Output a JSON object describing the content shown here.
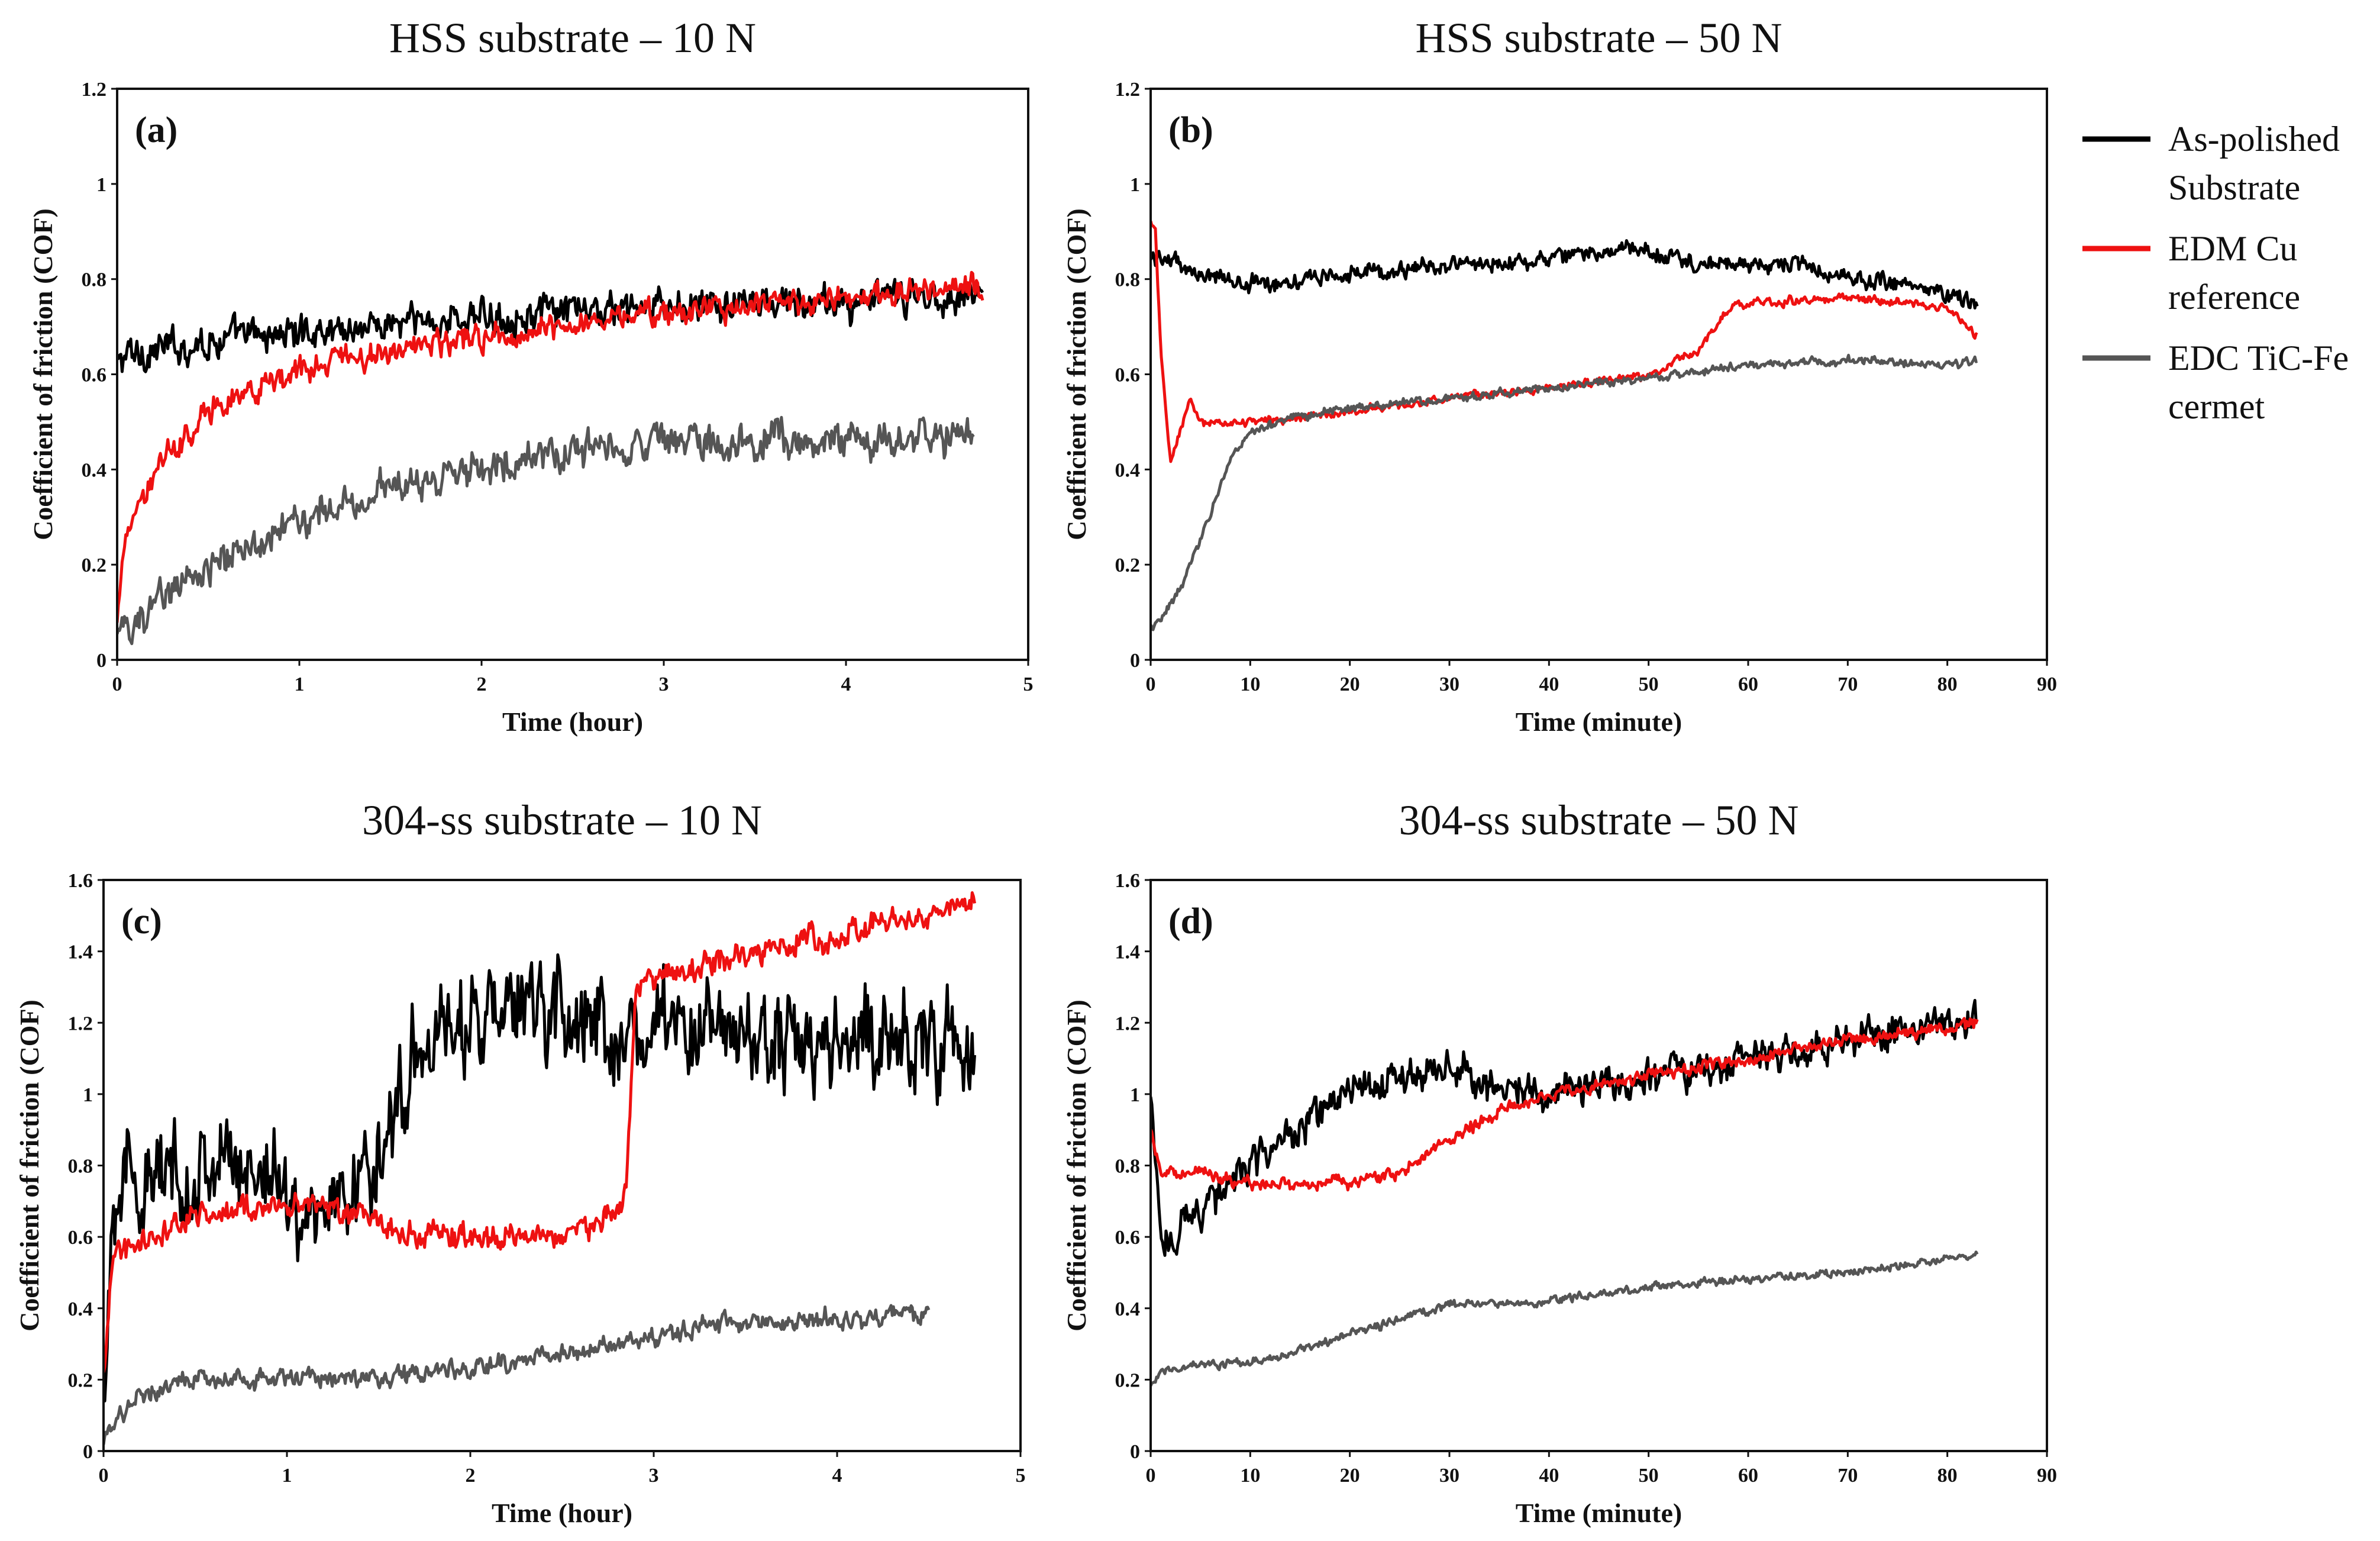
{
  "legend": {
    "entries": [
      {
        "lines": [
          "As-polished",
          "Substrate"
        ],
        "color": "#000000"
      },
      {
        "lines": [
          "EDM Cu",
          "reference"
        ],
        "color": "#ee1111"
      },
      {
        "lines": [
          "EDC TiC-Fe",
          "cermet"
        ],
        "color": "#555555"
      }
    ]
  },
  "chart_data": [
    {
      "type": "line",
      "panel_label": "(a)",
      "title": "HSS substrate – 10 N",
      "xlabel": "Time (hour)",
      "ylabel": "Coefficient of friction (COF)",
      "xlim": [
        0,
        5
      ],
      "ylim": [
        0,
        1.2
      ],
      "xticks": [
        "0",
        "1",
        "2",
        "3",
        "4",
        "5"
      ],
      "yticks": [
        "0",
        "0.2",
        "0.4",
        "0.6",
        "0.8",
        "1",
        "1.2"
      ],
      "series": [
        {
          "name": "As-polished Substrate",
          "color": "#000000",
          "noise": 0.025,
          "x": [
            0,
            0.05,
            0.5,
            1,
            2,
            3,
            4,
            4.75
          ],
          "y": [
            0.62,
            0.64,
            0.67,
            0.69,
            0.72,
            0.74,
            0.75,
            0.77
          ]
        },
        {
          "name": "EDM Cu reference",
          "color": "#ee1111",
          "noise": 0.018,
          "x": [
            0,
            0.05,
            0.25,
            0.5,
            1,
            1.5,
            2,
            3,
            4,
            4.75
          ],
          "y": [
            0.08,
            0.28,
            0.42,
            0.52,
            0.61,
            0.65,
            0.68,
            0.73,
            0.76,
            0.79
          ]
        },
        {
          "name": "EDC TiC-Fe cermet",
          "color": "#555555",
          "noise": 0.025,
          "x": [
            0,
            0.25,
            0.5,
            1,
            1.5,
            2,
            2.5,
            3,
            4,
            4.7
          ],
          "y": [
            0.05,
            0.13,
            0.19,
            0.3,
            0.36,
            0.41,
            0.44,
            0.46,
            0.46,
            0.48
          ]
        }
      ]
    },
    {
      "type": "line",
      "panel_label": "(b)",
      "title": "HSS substrate – 50 N",
      "xlabel": "Time (minute)",
      "ylabel": "Coefficient of friction (COF)",
      "xlim": [
        0,
        90
      ],
      "ylim": [
        0,
        1.2
      ],
      "xticks": [
        "0",
        "10",
        "20",
        "30",
        "40",
        "50",
        "60",
        "70",
        "80",
        "90"
      ],
      "yticks": [
        "0",
        "0.2",
        "0.4",
        "0.6",
        "0.8",
        "1",
        "1.2"
      ],
      "series": [
        {
          "name": "As-polished Substrate",
          "color": "#000000",
          "noise": 0.012,
          "x": [
            0,
            1,
            5,
            10,
            20,
            30,
            40,
            45,
            50,
            55,
            60,
            65,
            70,
            75,
            80,
            83
          ],
          "y": [
            0.84,
            0.85,
            0.81,
            0.79,
            0.81,
            0.83,
            0.84,
            0.86,
            0.86,
            0.83,
            0.83,
            0.83,
            0.8,
            0.79,
            0.77,
            0.75
          ]
        },
        {
          "name": "EDM Cu reference",
          "color": "#ee1111",
          "noise": 0.006,
          "x": [
            0,
            0.5,
            1,
            2,
            3,
            4,
            5,
            10,
            20,
            30,
            40,
            50,
            55,
            58,
            60,
            70,
            80,
            83
          ],
          "y": [
            0.92,
            0.9,
            0.65,
            0.42,
            0.48,
            0.55,
            0.5,
            0.5,
            0.52,
            0.55,
            0.57,
            0.6,
            0.65,
            0.74,
            0.75,
            0.76,
            0.74,
            0.68
          ]
        },
        {
          "name": "EDC TiC-Fe cermet",
          "color": "#555555",
          "noise": 0.006,
          "x": [
            0,
            1,
            3,
            5,
            8,
            10,
            15,
            20,
            30,
            40,
            50,
            60,
            70,
            80,
            83
          ],
          "y": [
            0.07,
            0.08,
            0.15,
            0.25,
            0.42,
            0.48,
            0.51,
            0.53,
            0.55,
            0.57,
            0.59,
            0.62,
            0.63,
            0.62,
            0.63
          ]
        }
      ]
    },
    {
      "type": "line",
      "panel_label": "(c)",
      "title": "304-ss substrate – 10 N",
      "xlabel": "Time (hour)",
      "ylabel": "Coefficient of friction (COF)",
      "xlim": [
        0,
        5
      ],
      "ylim": [
        0,
        1.6
      ],
      "xticks": [
        "0",
        "1",
        "2",
        "3",
        "4",
        "5"
      ],
      "yticks": [
        "0",
        "0.2",
        "0.4",
        "0.6",
        "0.8",
        "1",
        "1.2",
        "1.4",
        "1.6"
      ],
      "series": [
        {
          "name": "As-polished Substrate",
          "color": "#000000",
          "noise": 0.09,
          "x": [
            0,
            0.05,
            0.3,
            0.6,
            0.9,
            1.1,
            1.3,
            1.5,
            1.7,
            2,
            2.5,
            2.8,
            3.2,
            3.5,
            4,
            4.5,
            4.75
          ],
          "y": [
            0.1,
            0.75,
            0.75,
            0.8,
            0.8,
            0.65,
            0.72,
            0.8,
            1.15,
            1.2,
            1.25,
            1.15,
            1.2,
            1.15,
            1.15,
            1.15,
            1.1
          ]
        },
        {
          "name": "EDM Cu reference",
          "color": "#ee1111",
          "noise": 0.025,
          "x": [
            0,
            0.05,
            0.3,
            0.6,
            1,
            1.4,
            1.6,
            2,
            2.5,
            2.8,
            2.85,
            2.9,
            3.5,
            4,
            4.5,
            4.75
          ],
          "y": [
            0.2,
            0.55,
            0.62,
            0.67,
            0.68,
            0.67,
            0.62,
            0.6,
            0.6,
            0.66,
            0.72,
            1.3,
            1.4,
            1.45,
            1.5,
            1.55
          ]
        },
        {
          "name": "EDC TiC-Fe cermet",
          "color": "#555555",
          "noise": 0.018,
          "x": [
            0,
            0.05,
            0.2,
            0.5,
            1,
            1.5,
            2,
            2.5,
            3,
            3.5,
            4,
            4.5
          ],
          "y": [
            0.02,
            0.08,
            0.15,
            0.2,
            0.2,
            0.21,
            0.23,
            0.27,
            0.32,
            0.36,
            0.37,
            0.38
          ]
        }
      ]
    },
    {
      "type": "line",
      "panel_label": "(d)",
      "title": "304-ss substrate – 50 N",
      "xlabel": "Time (minute)",
      "ylabel": "Coefficient of friction (COF)",
      "xlim": [
        0,
        90
      ],
      "ylim": [
        0,
        1.6
      ],
      "xticks": [
        "0",
        "10",
        "20",
        "30",
        "40",
        "50",
        "60",
        "70",
        "80",
        "90"
      ],
      "yticks": [
        "0",
        "0.2",
        "0.4",
        "0.6",
        "0.8",
        "1",
        "1.2",
        "1.4",
        "1.6"
      ],
      "series": [
        {
          "name": "As-polished Substrate",
          "color": "#000000",
          "noise": 0.035,
          "x": [
            0,
            1,
            5,
            10,
            15,
            20,
            25,
            30,
            35,
            40,
            50,
            60,
            70,
            80,
            83
          ],
          "y": [
            1.0,
            0.58,
            0.68,
            0.8,
            0.9,
            1.0,
            1.05,
            1.08,
            1.02,
            1.0,
            1.05,
            1.1,
            1.15,
            1.2,
            1.22
          ]
        },
        {
          "name": "EDM Cu reference",
          "color": "#ee1111",
          "noise": 0.012,
          "x": [
            0,
            1,
            5,
            10,
            20,
            25,
            30,
            35,
            40,
            50,
            60,
            70,
            80,
            83
          ],
          "y": [
            0.9,
            0.78,
            0.78,
            0.75,
            0.75,
            0.78,
            0.88,
            0.95,
            1.0,
            1.05,
            1.1,
            1.15,
            1.18,
            1.2
          ]
        },
        {
          "name": "EDC TiC-Fe cermet",
          "color": "#555555",
          "noise": 0.008,
          "x": [
            0,
            1,
            5,
            10,
            15,
            20,
            25,
            30,
            40,
            50,
            60,
            70,
            80,
            83
          ],
          "y": [
            0.18,
            0.22,
            0.24,
            0.25,
            0.28,
            0.33,
            0.37,
            0.41,
            0.42,
            0.46,
            0.48,
            0.5,
            0.54,
            0.55
          ]
        }
      ]
    }
  ]
}
